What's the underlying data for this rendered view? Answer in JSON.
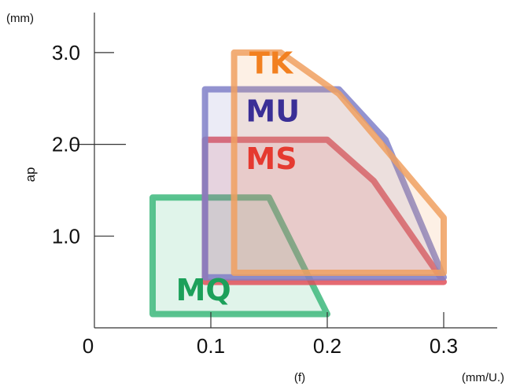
{
  "chart_data": {
    "type": "area",
    "x_unit_label": "(mm/U.)",
    "y_unit_label": "(mm)",
    "xlabel": "(f)",
    "ylabel": "ap",
    "xlim": [
      0,
      0.35
    ],
    "ylim": [
      0,
      3.4
    ],
    "x_ticks": [
      {
        "value": 0,
        "label": "0"
      },
      {
        "value": 0.1,
        "label": "0.1"
      },
      {
        "value": 0.2,
        "label": "0.2"
      },
      {
        "value": 0.3,
        "label": "0.3"
      }
    ],
    "y_ticks": [
      {
        "value": 1.0,
        "label": "1.0"
      },
      {
        "value": 2.0,
        "label": "2.0"
      },
      {
        "value": 3.0,
        "label": "3.0"
      }
    ],
    "series": [
      {
        "name": "MQ",
        "color": "#3db97c",
        "points": [
          [
            0.05,
            0.15
          ],
          [
            0.05,
            1.42
          ],
          [
            0.15,
            1.42
          ],
          [
            0.2,
            0.15
          ]
        ],
        "label_pos": [
          0.07,
          0.3
        ]
      },
      {
        "name": "MS",
        "color": "#e0505a",
        "points": [
          [
            0.095,
            0.5
          ],
          [
            0.095,
            2.05
          ],
          [
            0.2,
            2.05
          ],
          [
            0.24,
            1.6
          ],
          [
            0.3,
            0.5
          ]
        ],
        "label_pos": [
          0.13,
          1.73
        ]
      },
      {
        "name": "MU",
        "color": "#8080c8",
        "points": [
          [
            0.095,
            0.55
          ],
          [
            0.095,
            2.6
          ],
          [
            0.21,
            2.6
          ],
          [
            0.25,
            2.05
          ],
          [
            0.3,
            0.55
          ]
        ],
        "label_pos": [
          0.13,
          2.25
        ]
      },
      {
        "name": "TK",
        "color": "#f0a060",
        "points": [
          [
            0.12,
            0.6
          ],
          [
            0.12,
            3.0
          ],
          [
            0.16,
            3.0
          ],
          [
            0.21,
            2.55
          ],
          [
            0.25,
            1.95
          ],
          [
            0.3,
            1.2
          ],
          [
            0.3,
            0.6
          ]
        ],
        "label_pos": [
          0.133,
          2.77
        ]
      }
    ],
    "label_colors": {
      "MQ": "#1ca05a",
      "MS": "#e53a30",
      "MU": "#3a2f96",
      "TK": "#f28020"
    }
  }
}
